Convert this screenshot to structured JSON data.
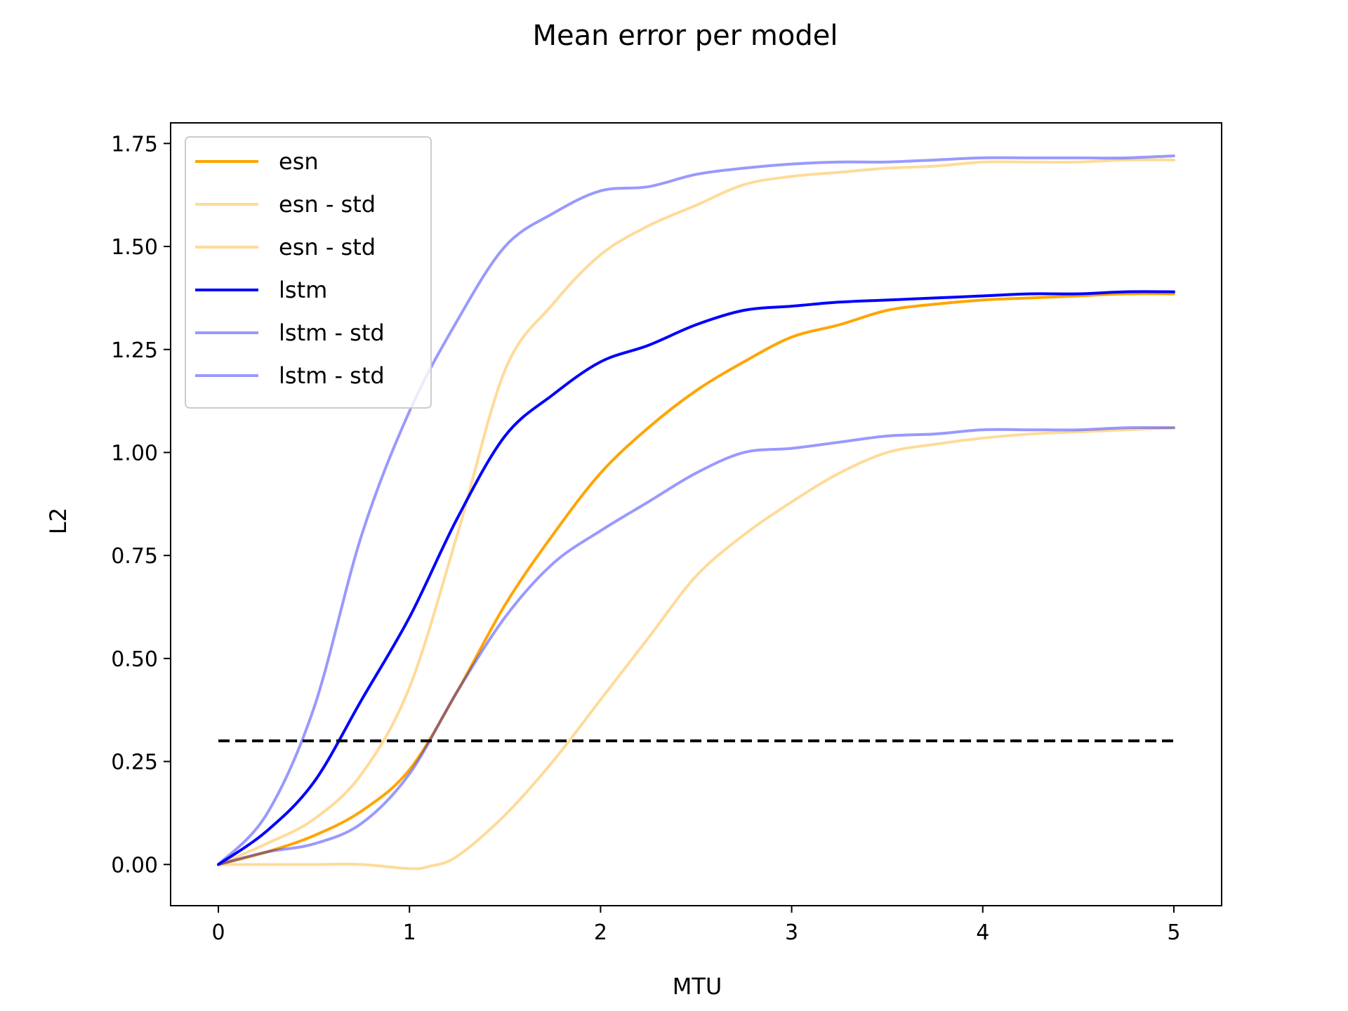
{
  "chart_data": {
    "type": "line",
    "title": "Mean error per model",
    "xlabel": "MTU",
    "ylabel": "L2",
    "xlim": [
      -0.25,
      5.25
    ],
    "ylim": [
      -0.1,
      1.8
    ],
    "xticks": [
      0,
      1,
      2,
      3,
      4,
      5
    ],
    "xtick_labels": [
      "0",
      "1",
      "2",
      "3",
      "4",
      "5"
    ],
    "yticks": [
      0.0,
      0.25,
      0.5,
      0.75,
      1.0,
      1.25,
      1.5,
      1.75
    ],
    "ytick_labels": [
      "0.00",
      "0.25",
      "0.50",
      "0.75",
      "1.00",
      "1.25",
      "1.50",
      "1.75"
    ],
    "grid": false,
    "legend_position": "top-left",
    "threshold": {
      "y": 0.3,
      "x": [
        0,
        5
      ],
      "style": "dashed",
      "color": "#000000"
    },
    "series": [
      {
        "name": "esn",
        "color": "#ffa500",
        "opacity": 1.0,
        "x": [
          0,
          0.25,
          0.5,
          0.75,
          1.0,
          1.25,
          1.5,
          1.75,
          2.0,
          2.25,
          2.5,
          2.75,
          3.0,
          3.25,
          3.5,
          3.75,
          4.0,
          4.25,
          4.5,
          4.75,
          5.0
        ],
        "y": [
          0.0,
          0.03,
          0.07,
          0.13,
          0.23,
          0.42,
          0.63,
          0.8,
          0.95,
          1.06,
          1.15,
          1.22,
          1.28,
          1.31,
          1.345,
          1.36,
          1.37,
          1.375,
          1.38,
          1.385,
          1.385
        ]
      },
      {
        "name": "esn - std",
        "color": "#ffa500",
        "opacity": 0.4,
        "x": [
          0,
          0.25,
          0.5,
          0.75,
          1.0,
          1.25,
          1.5,
          1.75,
          2.0,
          2.25,
          2.5,
          2.75,
          3.0,
          3.25,
          3.5,
          3.75,
          4.0,
          4.25,
          4.5,
          4.75,
          5.0
        ],
        "y": [
          0.0,
          0.05,
          0.11,
          0.22,
          0.43,
          0.8,
          1.2,
          1.36,
          1.48,
          1.55,
          1.6,
          1.65,
          1.67,
          1.68,
          1.69,
          1.695,
          1.705,
          1.705,
          1.705,
          1.71,
          1.71
        ]
      },
      {
        "name": "esn - std",
        "color": "#ffa500",
        "opacity": 0.4,
        "x": [
          0,
          0.25,
          0.5,
          0.75,
          1.0,
          1.1,
          1.25,
          1.5,
          1.75,
          2.0,
          2.25,
          2.5,
          2.75,
          3.0,
          3.25,
          3.5,
          3.75,
          4.0,
          4.25,
          4.5,
          4.75,
          5.0
        ],
        "y": [
          0.0,
          0.0,
          0.0,
          0.0,
          -0.01,
          -0.005,
          0.02,
          0.12,
          0.25,
          0.4,
          0.55,
          0.7,
          0.8,
          0.88,
          0.95,
          1.0,
          1.02,
          1.035,
          1.045,
          1.05,
          1.055,
          1.06
        ]
      },
      {
        "name": "lstm",
        "color": "#0000ff",
        "opacity": 1.0,
        "x": [
          0,
          0.25,
          0.5,
          0.75,
          1.0,
          1.25,
          1.5,
          1.75,
          2.0,
          2.25,
          2.5,
          2.75,
          3.0,
          3.25,
          3.5,
          3.75,
          4.0,
          4.25,
          4.5,
          4.75,
          5.0
        ],
        "y": [
          0.0,
          0.08,
          0.2,
          0.4,
          0.6,
          0.84,
          1.04,
          1.14,
          1.22,
          1.26,
          1.31,
          1.345,
          1.355,
          1.365,
          1.37,
          1.375,
          1.38,
          1.385,
          1.385,
          1.39,
          1.39
        ]
      },
      {
        "name": "lstm - std",
        "color": "#0000ff",
        "opacity": 0.4,
        "x": [
          0,
          0.25,
          0.5,
          0.75,
          1.0,
          1.25,
          1.5,
          1.75,
          2.0,
          2.25,
          2.5,
          2.75,
          3.0,
          3.25,
          3.5,
          3.75,
          4.0,
          4.25,
          4.5,
          4.75,
          5.0
        ],
        "y": [
          0.0,
          0.12,
          0.38,
          0.8,
          1.1,
          1.32,
          1.5,
          1.58,
          1.635,
          1.645,
          1.675,
          1.69,
          1.7,
          1.705,
          1.705,
          1.71,
          1.715,
          1.715,
          1.715,
          1.715,
          1.72
        ]
      },
      {
        "name": "lstm - std",
        "color": "#0000ff",
        "opacity": 0.4,
        "x": [
          0,
          0.25,
          0.5,
          0.75,
          1.0,
          1.25,
          1.5,
          1.75,
          2.0,
          2.25,
          2.5,
          2.75,
          3.0,
          3.25,
          3.5,
          3.75,
          4.0,
          4.25,
          4.5,
          4.75,
          5.0
        ],
        "y": [
          0.0,
          0.03,
          0.05,
          0.1,
          0.22,
          0.42,
          0.6,
          0.73,
          0.81,
          0.88,
          0.95,
          1.0,
          1.01,
          1.025,
          1.04,
          1.045,
          1.055,
          1.055,
          1.055,
          1.06,
          1.06
        ]
      }
    ]
  }
}
